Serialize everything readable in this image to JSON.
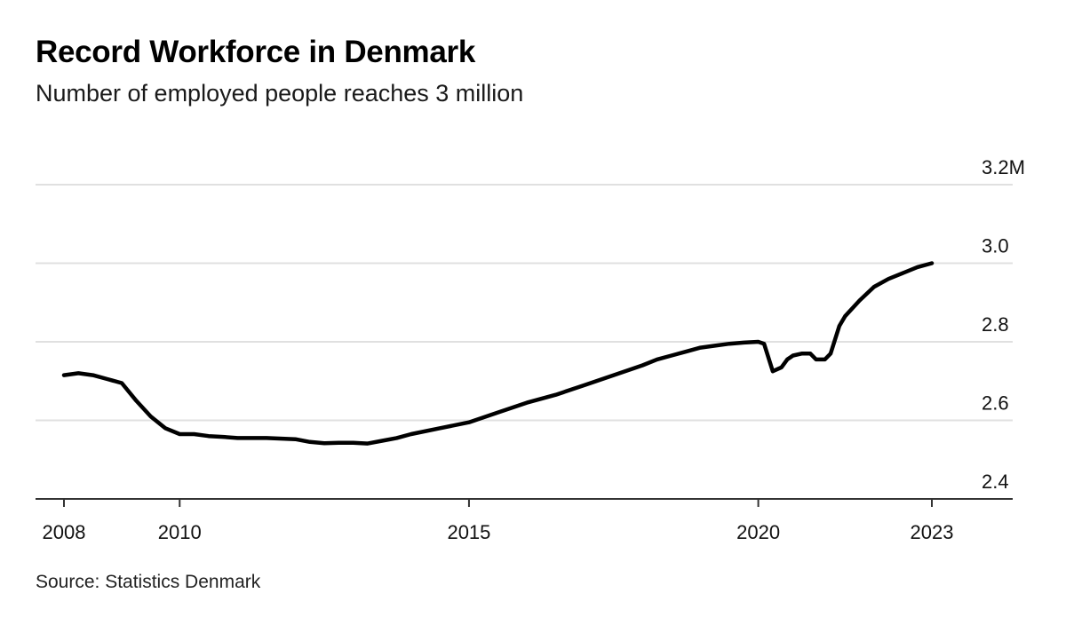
{
  "title": "Record Workforce in Denmark",
  "subtitle": "Number of employed people reaches 3 million",
  "source": "Source: Statistics Denmark",
  "chart_data": {
    "type": "line",
    "title": "Record Workforce in Denmark",
    "subtitle": "Number of employed people reaches 3 million",
    "xlabel": "",
    "ylabel": "",
    "xlim": [
      2008,
      2023
    ],
    "ylim": [
      2.4,
      3.2
    ],
    "y_unit": "million employed people",
    "x_ticks": [
      {
        "value": 2008,
        "label": "2008"
      },
      {
        "value": 2010,
        "label": "2010"
      },
      {
        "value": 2015,
        "label": "2015"
      },
      {
        "value": 2020,
        "label": "2020"
      },
      {
        "value": 2023,
        "label": "2023"
      }
    ],
    "y_ticks": [
      {
        "value": 3.2,
        "label": "3.2M"
      },
      {
        "value": 3.0,
        "label": "3.0"
      },
      {
        "value": 2.8,
        "label": "2.8"
      },
      {
        "value": 2.6,
        "label": "2.6"
      },
      {
        "value": 2.4,
        "label": "2.4"
      }
    ],
    "grid": true,
    "y_axis_position": "right",
    "line_color": "#000000",
    "grid_color": "#e0e0e0",
    "series": [
      {
        "x": [
          2008.0,
          2008.25,
          2008.5,
          2008.75,
          2009.0,
          2009.25,
          2009.5,
          2009.75,
          2010.0,
          2010.25,
          2010.5,
          2010.75,
          2011.0,
          2011.5,
          2012.0,
          2012.25,
          2012.5,
          2012.75,
          2013.0,
          2013.25,
          2013.5,
          2013.75,
          2014.0,
          2014.5,
          2015.0,
          2015.5,
          2016.0,
          2016.5,
          2017.0,
          2017.5,
          2018.0,
          2018.25,
          2018.5,
          2018.75,
          2019.0,
          2019.25,
          2019.5,
          2019.75,
          2020.0,
          2020.1,
          2020.25,
          2020.4,
          2020.5,
          2020.6,
          2020.75,
          2020.9,
          2021.0,
          2021.15,
          2021.25,
          2021.4,
          2021.5,
          2021.75,
          2022.0,
          2022.25,
          2022.5,
          2022.75,
          2023.0
        ],
        "y": [
          2.715,
          2.72,
          2.715,
          2.705,
          2.695,
          2.65,
          2.61,
          2.58,
          2.565,
          2.565,
          2.56,
          2.558,
          2.555,
          2.555,
          2.552,
          2.545,
          2.542,
          2.543,
          2.543,
          2.541,
          2.548,
          2.555,
          2.565,
          2.58,
          2.595,
          2.62,
          2.645,
          2.665,
          2.69,
          2.715,
          2.74,
          2.755,
          2.765,
          2.775,
          2.785,
          2.79,
          2.795,
          2.798,
          2.8,
          2.795,
          2.725,
          2.735,
          2.755,
          2.765,
          2.77,
          2.77,
          2.755,
          2.755,
          2.77,
          2.84,
          2.865,
          2.905,
          2.94,
          2.96,
          2.975,
          2.99,
          3.0
        ]
      }
    ]
  }
}
